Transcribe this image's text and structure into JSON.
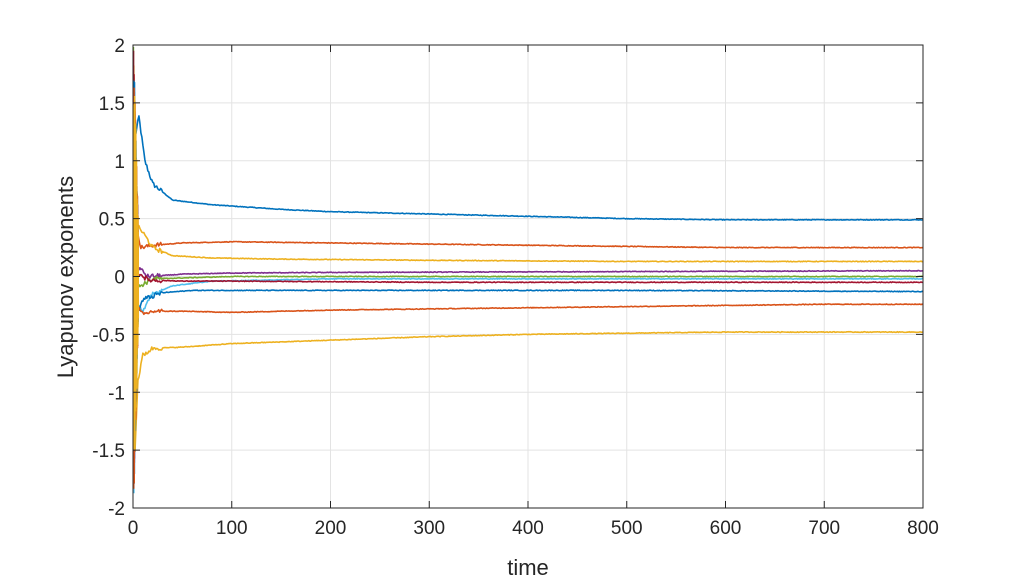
{
  "chart_data": {
    "type": "line",
    "title": "",
    "xlabel": "time",
    "ylabel": "Lyapunov exponents",
    "xlim": [
      0,
      800
    ],
    "ylim": [
      -2,
      2
    ],
    "xticks": [
      0,
      100,
      200,
      300,
      400,
      500,
      600,
      700,
      800
    ],
    "yticks": [
      -2,
      -1.5,
      -1,
      -0.5,
      0,
      0.5,
      1,
      1.5,
      2
    ],
    "grid": true,
    "legend": "none",
    "series": [
      {
        "color": "#0072BD",
        "points": [
          [
            2,
            1.2
          ],
          [
            6,
            1.38
          ],
          [
            12,
            1.0
          ],
          [
            20,
            0.8
          ],
          [
            40,
            0.66
          ],
          [
            80,
            0.62
          ],
          [
            150,
            0.58
          ],
          [
            200,
            0.56
          ],
          [
            300,
            0.54
          ],
          [
            400,
            0.52
          ],
          [
            500,
            0.5
          ],
          [
            600,
            0.49
          ],
          [
            700,
            0.49
          ],
          [
            800,
            0.49
          ]
        ]
      },
      {
        "color": "#D95319",
        "points": [
          [
            2,
            0.5
          ],
          [
            8,
            0.25
          ],
          [
            20,
            0.27
          ],
          [
            50,
            0.29
          ],
          [
            100,
            0.3
          ],
          [
            200,
            0.29
          ],
          [
            300,
            0.28
          ],
          [
            400,
            0.27
          ],
          [
            500,
            0.26
          ],
          [
            600,
            0.25
          ],
          [
            700,
            0.25
          ],
          [
            800,
            0.25
          ]
        ]
      },
      {
        "color": "#EDB120",
        "points": [
          [
            3,
            0.45
          ],
          [
            10,
            0.38
          ],
          [
            20,
            0.25
          ],
          [
            40,
            0.18
          ],
          [
            80,
            0.16
          ],
          [
            150,
            0.15
          ],
          [
            300,
            0.14
          ],
          [
            500,
            0.13
          ],
          [
            800,
            0.13
          ]
        ]
      },
      {
        "color": "#7E2F8E",
        "points": [
          [
            3,
            0.1
          ],
          [
            15,
            0.0
          ],
          [
            50,
            0.02
          ],
          [
            100,
            0.03
          ],
          [
            200,
            0.035
          ],
          [
            400,
            0.04
          ],
          [
            600,
            0.045
          ],
          [
            800,
            0.05
          ]
        ]
      },
      {
        "color": "#77AC30",
        "points": [
          [
            3,
            -0.1
          ],
          [
            20,
            -0.02
          ],
          [
            100,
            0.0
          ],
          [
            200,
            0.0
          ],
          [
            400,
            0.0
          ],
          [
            800,
            0.0
          ]
        ]
      },
      {
        "color": "#4DBEEE",
        "points": [
          [
            3,
            -0.2
          ],
          [
            10,
            -0.3
          ],
          [
            20,
            -0.15
          ],
          [
            40,
            -0.08
          ],
          [
            80,
            -0.04
          ],
          [
            200,
            -0.02
          ],
          [
            400,
            -0.02
          ],
          [
            800,
            -0.02
          ]
        ]
      },
      {
        "color": "#A2142F",
        "points": [
          [
            3,
            0.05
          ],
          [
            15,
            -0.03
          ],
          [
            50,
            -0.04
          ],
          [
            100,
            -0.04
          ],
          [
            300,
            -0.05
          ],
          [
            500,
            -0.05
          ],
          [
            800,
            -0.05
          ]
        ]
      },
      {
        "color": "#0072BD",
        "points": [
          [
            3,
            -0.35
          ],
          [
            10,
            -0.2
          ],
          [
            30,
            -0.14
          ],
          [
            60,
            -0.12
          ],
          [
            100,
            -0.12
          ],
          [
            300,
            -0.12
          ],
          [
            500,
            -0.12
          ],
          [
            800,
            -0.13
          ]
        ]
      },
      {
        "color": "#D95319",
        "points": [
          [
            3,
            -0.25
          ],
          [
            10,
            -0.33
          ],
          [
            20,
            -0.3
          ],
          [
            50,
            -0.3
          ],
          [
            100,
            -0.31
          ],
          [
            200,
            -0.29
          ],
          [
            300,
            -0.28
          ],
          [
            400,
            -0.27
          ],
          [
            500,
            -0.26
          ],
          [
            600,
            -0.25
          ],
          [
            700,
            -0.24
          ],
          [
            800,
            -0.24
          ]
        ]
      },
      {
        "color": "#EDB120",
        "points": [
          [
            2,
            -1.5
          ],
          [
            5,
            -0.9
          ],
          [
            10,
            -0.68
          ],
          [
            20,
            -0.62
          ],
          [
            50,
            -0.61
          ],
          [
            100,
            -0.58
          ],
          [
            200,
            -0.55
          ],
          [
            300,
            -0.52
          ],
          [
            400,
            -0.5
          ],
          [
            500,
            -0.49
          ],
          [
            600,
            -0.48
          ],
          [
            700,
            -0.48
          ],
          [
            800,
            -0.48
          ]
        ]
      }
    ]
  }
}
